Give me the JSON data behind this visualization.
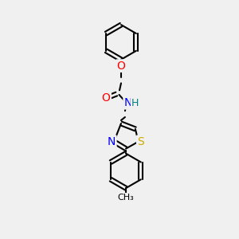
{
  "bg_color": "#f0f0f0",
  "bond_color": "#000000",
  "bond_width": 1.5,
  "atom_colors": {
    "O": "#ff0000",
    "N": "#0000ff",
    "S": "#ccaa00",
    "H": "#008080",
    "C": "#000000"
  },
  "font_size": 9,
  "fig_size": [
    3.0,
    3.0
  ],
  "dpi": 100
}
